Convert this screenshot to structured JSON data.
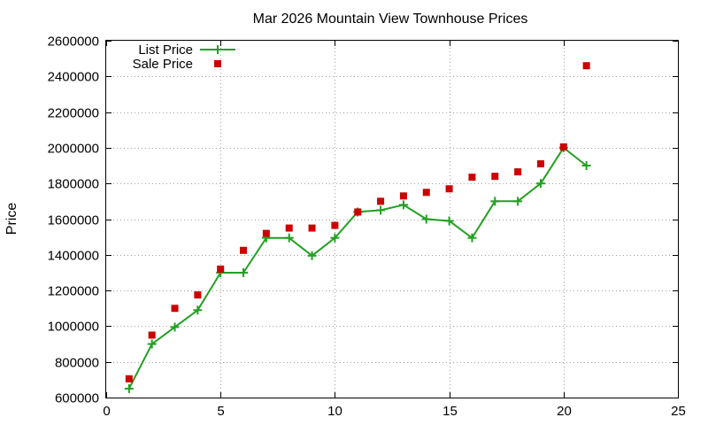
{
  "chart_data": {
    "type": "line",
    "title": "Mar 2026 Mountain View Townhouse Prices",
    "xlabel": "",
    "ylabel": "Price",
    "xlim": [
      0,
      25
    ],
    "ylim": [
      600000,
      2600000
    ],
    "xticks": [
      0,
      5,
      10,
      15,
      20,
      25
    ],
    "yticks": [
      600000,
      800000,
      1000000,
      1200000,
      1400000,
      1600000,
      1800000,
      2000000,
      2200000,
      2400000,
      2600000
    ],
    "grid": true,
    "legend_position": "top-left",
    "series": [
      {
        "name": "List Price",
        "style": "linespoints",
        "marker": "plus",
        "color": "#22a022",
        "x": [
          1,
          2,
          3,
          4,
          5,
          6,
          7,
          8,
          9,
          10,
          11,
          12,
          13,
          14,
          15,
          16,
          17,
          18,
          19,
          20,
          21
        ],
        "y": [
          650000,
          900000,
          995000,
          1090000,
          1300000,
          1300000,
          1495000,
          1495000,
          1395000,
          1495000,
          1640000,
          1650000,
          1680000,
          1600000,
          1590000,
          1495000,
          1700000,
          1700000,
          1800000,
          2000000,
          1900000
        ]
      },
      {
        "name": "Sale Price",
        "style": "points",
        "marker": "square",
        "color": "#cc0000",
        "x": [
          1,
          2,
          3,
          4,
          5,
          6,
          7,
          8,
          9,
          10,
          11,
          12,
          13,
          14,
          15,
          16,
          17,
          18,
          19,
          20,
          21
        ],
        "y": [
          705000,
          950000,
          1100000,
          1175000,
          1320000,
          1425000,
          1520000,
          1550000,
          1550000,
          1565000,
          1640000,
          1700000,
          1730000,
          1750000,
          1770000,
          1835000,
          1840000,
          1865000,
          1910000,
          2005000,
          2460000
        ]
      }
    ]
  }
}
